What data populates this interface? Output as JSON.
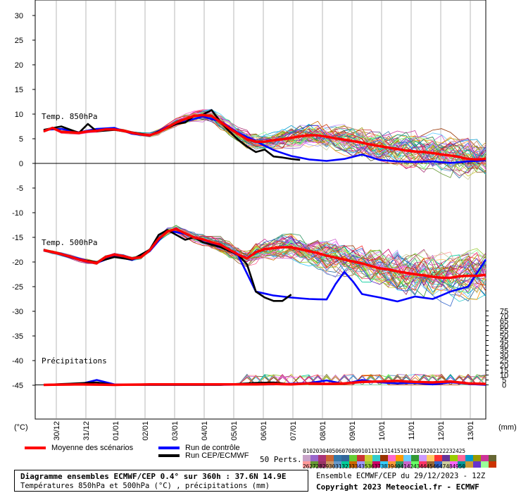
{
  "chart_data": {
    "type": "line",
    "left_axis": {
      "ticks": [
        "30",
        "25",
        "20",
        "15",
        "10",
        "5",
        "0",
        "-5",
        "-10",
        "-15",
        "-20",
        "-25",
        "-30",
        "-35",
        "-40",
        "-45"
      ],
      "unit": "(°C)"
    },
    "right_axis": {
      "ticks": [
        "75",
        "70",
        "65",
        "60",
        "55",
        "50",
        "45",
        "40",
        "35",
        "30",
        "25",
        "20",
        "15",
        "10",
        "5",
        "0"
      ],
      "unit": "(mm)"
    },
    "dates": [
      "30/12",
      "31/12",
      "01/01",
      "02/01",
      "03/01",
      "04/01",
      "05/01",
      "06/01",
      "07/01",
      "08/01",
      "09/01",
      "10/01",
      "11/01",
      "12/01",
      "13/01"
    ],
    "panel_labels": {
      "t850": "Temp. 850hPa",
      "t500": "Temp. 500hPa",
      "precip": "Précipitations"
    },
    "series": [
      {
        "name": "Moyenne des scénarios",
        "color": "#ff0000",
        "t850": [
          [
            0,
            6.5
          ],
          [
            1,
            7.2
          ],
          [
            2,
            6.4
          ],
          [
            3,
            6.3
          ],
          [
            4,
            6.2
          ],
          [
            5,
            6.5
          ],
          [
            6,
            6.6
          ],
          [
            7,
            6.9
          ],
          [
            8,
            6.9
          ],
          [
            9,
            6.6
          ],
          [
            10,
            6.2
          ],
          [
            11,
            5.9
          ],
          [
            12,
            5.7
          ],
          [
            13,
            6.3
          ],
          [
            14,
            7.3
          ],
          [
            15,
            8.3
          ],
          [
            16,
            9.0
          ],
          [
            17,
            9.6
          ],
          [
            18,
            9.8
          ],
          [
            19,
            9.6
          ],
          [
            20,
            8.4
          ],
          [
            21,
            7.1
          ],
          [
            22,
            6.0
          ],
          [
            23,
            4.9
          ],
          [
            24,
            4.4
          ],
          [
            25,
            4.4
          ],
          [
            26,
            4.7
          ],
          [
            27,
            4.9
          ],
          [
            28,
            5.2
          ],
          [
            29,
            5.5
          ],
          [
            30,
            5.7
          ],
          [
            31,
            5.7
          ],
          [
            32,
            5.4
          ],
          [
            33,
            5.1
          ],
          [
            34,
            4.8
          ],
          [
            35,
            4.5
          ],
          [
            36,
            4.2
          ],
          [
            37,
            3.8
          ],
          [
            38,
            3.5
          ],
          [
            39,
            3.2
          ],
          [
            40,
            2.9
          ],
          [
            41,
            2.6
          ],
          [
            42,
            2.4
          ],
          [
            43,
            2.3
          ],
          [
            44,
            2.1
          ],
          [
            45,
            1.8
          ],
          [
            46,
            1.6
          ],
          [
            47,
            1.3
          ],
          [
            48,
            0.9
          ],
          [
            49,
            0.8
          ],
          [
            50,
            0.9
          ]
        ],
        "t500": [
          [
            0,
            -17.6
          ],
          [
            1,
            -18.0
          ],
          [
            2,
            -18.4
          ],
          [
            3,
            -18.9
          ],
          [
            4,
            -19.5
          ],
          [
            5,
            -19.9
          ],
          [
            6,
            -20.2
          ],
          [
            7,
            -19.0
          ],
          [
            8,
            -18.5
          ],
          [
            9,
            -18.8
          ],
          [
            10,
            -19.3
          ],
          [
            11,
            -19.0
          ],
          [
            12,
            -17.6
          ],
          [
            13,
            -15.3
          ],
          [
            14,
            -13.8
          ],
          [
            15,
            -13.3
          ],
          [
            16,
            -14.2
          ],
          [
            17,
            -15.0
          ],
          [
            18,
            -15.4
          ],
          [
            19,
            -16.0
          ],
          [
            20,
            -16.5
          ],
          [
            21,
            -17.5
          ],
          [
            22,
            -18.5
          ],
          [
            23,
            -19.3
          ],
          [
            24,
            -18.0
          ],
          [
            25,
            -17.4
          ],
          [
            26,
            -17.2
          ],
          [
            27,
            -17.0
          ],
          [
            28,
            -17.0
          ],
          [
            29,
            -17.4
          ],
          [
            30,
            -17.8
          ],
          [
            31,
            -18.2
          ],
          [
            32,
            -18.7
          ],
          [
            33,
            -19.1
          ],
          [
            34,
            -19.5
          ],
          [
            35,
            -19.9
          ],
          [
            36,
            -20.3
          ],
          [
            37,
            -20.8
          ],
          [
            38,
            -21.3
          ],
          [
            39,
            -21.5
          ],
          [
            40,
            -21.9
          ],
          [
            41,
            -22.2
          ],
          [
            42,
            -22.5
          ],
          [
            43,
            -22.7
          ],
          [
            44,
            -23.0
          ],
          [
            45,
            -23.2
          ],
          [
            46,
            -23.2
          ],
          [
            47,
            -22.9
          ],
          [
            48,
            -22.8
          ],
          [
            49,
            -22.8
          ],
          [
            50,
            -22.6
          ]
        ],
        "precip": [
          [
            0,
            0
          ],
          [
            4,
            0.1
          ],
          [
            8,
            0
          ],
          [
            12,
            0.1
          ],
          [
            16,
            0.1
          ],
          [
            20,
            0.1
          ],
          [
            24,
            0.1
          ],
          [
            26,
            0.2
          ],
          [
            28,
            0.1
          ],
          [
            30,
            0.3
          ],
          [
            32,
            0.2
          ],
          [
            34,
            0.3
          ],
          [
            36,
            0.6
          ],
          [
            38,
            0.7
          ],
          [
            40,
            0.8
          ],
          [
            42,
            0.6
          ],
          [
            44,
            0.5
          ],
          [
            46,
            0.7
          ],
          [
            48,
            0.3
          ],
          [
            50,
            0.2
          ]
        ]
      },
      {
        "name": "Run de contrôle",
        "color": "#0000ff",
        "t850": [
          [
            0,
            6.8
          ],
          [
            2,
            7.0
          ],
          [
            4,
            6.3
          ],
          [
            6,
            7.0
          ],
          [
            8,
            7.2
          ],
          [
            10,
            6.0
          ],
          [
            12,
            5.6
          ],
          [
            14,
            7.5
          ],
          [
            16,
            8.5
          ],
          [
            18,
            9.5
          ],
          [
            20,
            8.5
          ],
          [
            22,
            6.2
          ],
          [
            24,
            4.5
          ],
          [
            26,
            2.7
          ],
          [
            28,
            1.5
          ],
          [
            30,
            0.8
          ],
          [
            32,
            0.5
          ],
          [
            34,
            0.9
          ],
          [
            36,
            1.8
          ],
          [
            38,
            0.7
          ],
          [
            40,
            0.4
          ],
          [
            42,
            0.3
          ],
          [
            44,
            0.4
          ],
          [
            46,
            0.1
          ],
          [
            48,
            0.4
          ],
          [
            50,
            0.6
          ]
        ],
        "t500": [
          [
            0,
            -17.7
          ],
          [
            2,
            -18.3
          ],
          [
            4,
            -19.3
          ],
          [
            6,
            -20.2
          ],
          [
            8,
            -18.8
          ],
          [
            10,
            -19.6
          ],
          [
            12,
            -17.8
          ],
          [
            14,
            -13.6
          ],
          [
            16,
            -14.3
          ],
          [
            18,
            -15.5
          ],
          [
            20,
            -16.8
          ],
          [
            22,
            -18.7
          ],
          [
            24,
            -26.0
          ],
          [
            26,
            -26.8
          ],
          [
            28,
            -27.2
          ],
          [
            30,
            -27.5
          ],
          [
            32,
            -27.6
          ],
          [
            33,
            -24.5
          ],
          [
            34,
            -22.0
          ],
          [
            35,
            -24.0
          ],
          [
            36,
            -26.5
          ],
          [
            38,
            -27.2
          ],
          [
            40,
            -28.0
          ],
          [
            42,
            -27.0
          ],
          [
            44,
            -27.5
          ],
          [
            46,
            -26.0
          ],
          [
            48,
            -25.0
          ],
          [
            50,
            -19.5
          ]
        ],
        "precip": [
          [
            0,
            0
          ],
          [
            4,
            0.1
          ],
          [
            6,
            1.0
          ],
          [
            8,
            0.1
          ],
          [
            12,
            0
          ],
          [
            20,
            0
          ],
          [
            24,
            0.1
          ],
          [
            26,
            0.1
          ],
          [
            30,
            0.4
          ],
          [
            32,
            0.9
          ],
          [
            34,
            0.2
          ],
          [
            36,
            1.0
          ],
          [
            38,
            0.5
          ],
          [
            40,
            0.3
          ],
          [
            42,
            0.4
          ],
          [
            44,
            0.1
          ],
          [
            46,
            0.5
          ],
          [
            48,
            0.2
          ],
          [
            50,
            0.0
          ]
        ]
      },
      {
        "name": "Run CEP/ECMWF",
        "color": "#000000",
        "t850": [
          [
            0,
            6.8
          ],
          [
            2,
            7.5
          ],
          [
            4,
            6.2
          ],
          [
            5,
            8.0
          ],
          [
            6,
            6.5
          ],
          [
            8,
            6.8
          ],
          [
            10,
            6.3
          ],
          [
            12,
            5.7
          ],
          [
            14,
            7.2
          ],
          [
            15,
            8.0
          ],
          [
            16,
            8.3
          ],
          [
            17,
            9.6
          ],
          [
            18,
            9.9
          ],
          [
            19,
            10.8
          ],
          [
            20,
            8.4
          ],
          [
            21,
            6.5
          ],
          [
            22,
            4.8
          ],
          [
            23,
            3.4
          ],
          [
            24,
            2.3
          ],
          [
            25,
            2.8
          ],
          [
            26,
            1.4
          ],
          [
            27,
            1.2
          ],
          [
            28,
            0.9
          ],
          [
            29,
            0.7
          ]
        ],
        "t500": [
          [
            0,
            -17.5
          ],
          [
            2,
            -18.5
          ],
          [
            4,
            -19.5
          ],
          [
            6,
            -20.0
          ],
          [
            8,
            -19.0
          ],
          [
            10,
            -19.5
          ],
          [
            12,
            -17.5
          ],
          [
            13,
            -14.5
          ],
          [
            14,
            -13.5
          ],
          [
            15,
            -14.5
          ],
          [
            16,
            -15.5
          ],
          [
            17,
            -15.0
          ],
          [
            18,
            -16.0
          ],
          [
            20,
            -17.0
          ],
          [
            22,
            -18.5
          ],
          [
            23,
            -20.5
          ],
          [
            24,
            -26.0
          ],
          [
            25,
            -27.2
          ],
          [
            26,
            -27.9
          ],
          [
            27,
            -27.9
          ],
          [
            28,
            -26.6
          ]
        ],
        "precip": [
          [
            0,
            0
          ],
          [
            6,
            0.5
          ],
          [
            8,
            0
          ],
          [
            20,
            0
          ],
          [
            24,
            0.4
          ],
          [
            26,
            0.5
          ],
          [
            28,
            0.1
          ]
        ]
      }
    ]
  },
  "legend": {
    "mean": "Moyenne des scénarios",
    "control": "Run de contrôle",
    "cep": "Run CEP/ECMWF",
    "perts_label": "50 Perts.",
    "perts_top": "01020304050607080910111213141516171819202122232425",
    "perts_bottom": "26272829303132333435363738394041424344454647484950",
    "pert_colors_top": [
      "#c8a2c8",
      "#9966cc",
      "#aa3377",
      "#cc6633",
      "#3377aa",
      "#336699",
      "#66cc33",
      "#cc3333",
      "#cccc33",
      "#33cccc",
      "#993300",
      "#ff66cc",
      "#ff9900",
      "#66ccff",
      "#339933",
      "#cc99ff",
      "#ffcc66",
      "#ff3333",
      "#663399",
      "#99cc00",
      "#ff6699",
      "#0099cc",
      "#999900",
      "#cc3399",
      "#666633"
    ],
    "pert_colors_bottom": [
      "#ff9999",
      "#669933",
      "#993366",
      "#cc9966",
      "#6699cc",
      "#00cc99",
      "#cc6600",
      "#9999ff",
      "#99cc33",
      "#cc0066",
      "#33ccff",
      "#ff9933",
      "#339966",
      "#cc66cc",
      "#66ff66",
      "#ff3366",
      "#996633",
      "#3366cc",
      "#cccc99",
      "#ff66ff",
      "#009999",
      "#cc9933",
      "#6633cc",
      "#99ff99",
      "#cc3300"
    ]
  },
  "info": {
    "title": "Diagramme ensembles ECMWF/CEP 0.4° sur 360h : 37.6N 14.9E",
    "subtitle": "Températures 850hPa et 500hPa (°C) , précipitations (mm)",
    "run": "Ensemble ECMWF/CEP du 29/12/2023 - 12Z",
    "copyright": "Copyright 2023 Meteociel.fr - ECMWF"
  }
}
